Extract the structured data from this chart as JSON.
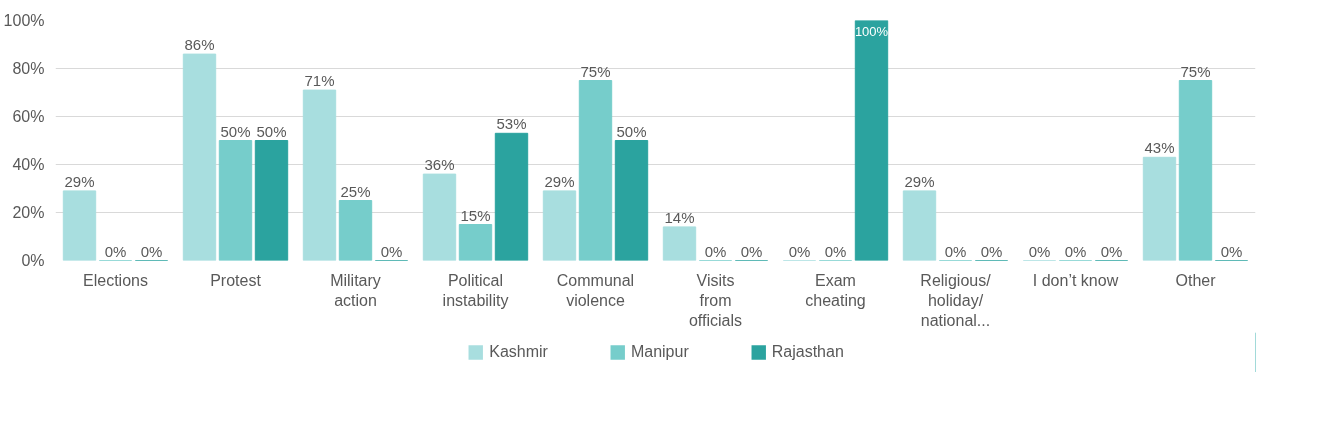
{
  "chart_data": {
    "type": "bar",
    "categories": [
      "Elections",
      "Protest",
      "Military action",
      "Political instability",
      "Communal violence",
      "Visits from officials",
      "Exam cheating",
      "Religious/ holiday/ national...",
      "I don’t know",
      "Other"
    ],
    "series": [
      {
        "name": "Kashmir",
        "color": "#a8dedf",
        "values": [
          29,
          86,
          71,
          36,
          29,
          14,
          0,
          29,
          0,
          43
        ],
        "value_labels": [
          "29%",
          "86%",
          "71%",
          "36%",
          "29%",
          "14%",
          "0%",
          "29%",
          "0%",
          "43%"
        ]
      },
      {
        "name": "Manipur",
        "color": "#76cdcb",
        "values": [
          0,
          50,
          25,
          15,
          75,
          0,
          0,
          0,
          0,
          75
        ],
        "value_labels": [
          "0%",
          "50%",
          "25%",
          "15%",
          "75%",
          "0%",
          "0%",
          "0%",
          "0%",
          "75%"
        ]
      },
      {
        "name": "Rajasthan",
        "color": "#2ba39f",
        "values": [
          0,
          50,
          0,
          53,
          50,
          0,
          100,
          0,
          0,
          0
        ],
        "value_labels": [
          "0%",
          "50%",
          "0%",
          "53%",
          "50%",
          "0%",
          "100%",
          "0%",
          "0%",
          "0%"
        ]
      }
    ],
    "ylim": [
      0,
      100
    ],
    "yticks": [
      {
        "value": 0,
        "label": "0%"
      },
      {
        "value": 20,
        "label": "20%"
      },
      {
        "value": 40,
        "label": "40%"
      },
      {
        "value": 60,
        "label": "60%"
      },
      {
        "value": 80,
        "label": "80%"
      },
      {
        "value": 100,
        "label": "100%"
      }
    ],
    "grid": "y",
    "legend": "bottom"
  }
}
